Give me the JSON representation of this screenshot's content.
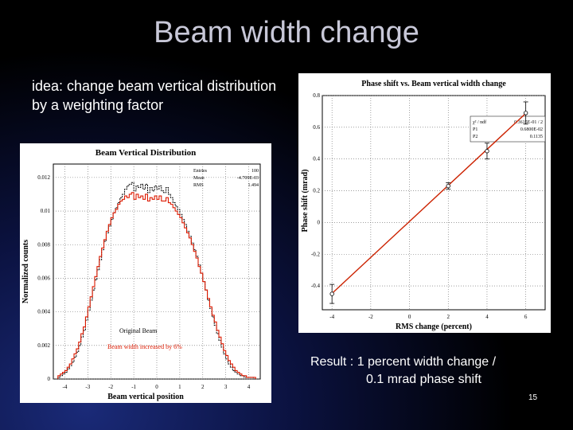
{
  "slide": {
    "title": "Beam width change",
    "idea_text": "idea: change beam vertical distribution by a weighting factor",
    "result_line1": "Result : 1 percent width change /",
    "result_line2": "0.1 mrad phase shift",
    "slide_number": "15"
  },
  "colors": {
    "fit_line": "#cc2200",
    "data": "#000000",
    "red_hist": "#dd1a00"
  },
  "chart_data": [
    {
      "type": "line",
      "title": "Beam Vertical Distribution",
      "xlabel": "Beam vertical position",
      "ylabel": "Normalized counts",
      "xlim": [
        -4.5,
        4.5
      ],
      "ylim": [
        0,
        0.0128
      ],
      "x_ticks": [
        "-4",
        "-3",
        "-2",
        "-1",
        "0",
        "1",
        "2",
        "3",
        "4"
      ],
      "y_ticks": [
        "0",
        "0.002",
        "0.004",
        "0.006",
        "0.008",
        "0.01",
        "0.012"
      ],
      "grid": true,
      "stats": [
        {
          "label": "Entries",
          "value": "100"
        },
        {
          "label": "Mean",
          "value": "-4.709E-03"
        },
        {
          "label": "RMS",
          "value": "1.494"
        }
      ],
      "annotations": [
        "Original Beam",
        "Beam width increased by 6%"
      ],
      "series": [
        {
          "name": "Original Beam",
          "color": "#000000",
          "x": [
            -4.25,
            -4.15,
            -4.05,
            -3.95,
            -3.85,
            -3.75,
            -3.65,
            -3.55,
            -3.45,
            -3.35,
            -3.25,
            -3.15,
            -3.05,
            -2.95,
            -2.85,
            -2.75,
            -2.65,
            -2.55,
            -2.45,
            -2.35,
            -2.25,
            -2.15,
            -2.05,
            -1.95,
            -1.85,
            -1.75,
            -1.65,
            -1.55,
            -1.45,
            -1.35,
            -1.25,
            -1.15,
            -1.05,
            -0.95,
            -0.85,
            -0.75,
            -0.65,
            -0.55,
            -0.45,
            -0.35,
            -0.25,
            -0.15,
            -0.05,
            0.05,
            0.15,
            0.25,
            0.35,
            0.45,
            0.55,
            0.65,
            0.75,
            0.85,
            0.95,
            1.05,
            1.15,
            1.25,
            1.35,
            1.45,
            1.55,
            1.65,
            1.75,
            1.85,
            1.95,
            2.05,
            2.15,
            2.25,
            2.35,
            2.45,
            2.55,
            2.65,
            2.75,
            2.85,
            2.95,
            3.05,
            3.15,
            3.25,
            3.35,
            3.45,
            3.55,
            3.65,
            3.75,
            3.85,
            3.95,
            4.05,
            4.15,
            4.25
          ],
          "y": [
            0.0001,
            0.0002,
            0.0003,
            0.0004,
            0.0006,
            0.0008,
            0.001,
            0.0013,
            0.0016,
            0.002,
            0.0025,
            0.0029,
            0.0035,
            0.0041,
            0.0047,
            0.0053,
            0.0059,
            0.0065,
            0.0071,
            0.0077,
            0.0082,
            0.0087,
            0.0091,
            0.0095,
            0.0099,
            0.0102,
            0.0105,
            0.0108,
            0.011,
            0.0113,
            0.0115,
            0.0116,
            0.0117,
            0.0112,
            0.0115,
            0.0114,
            0.0116,
            0.0113,
            0.0116,
            0.0111,
            0.0114,
            0.0112,
            0.0115,
            0.0113,
            0.0115,
            0.0112,
            0.0111,
            0.0114,
            0.011,
            0.0108,
            0.0105,
            0.0103,
            0.0101,
            0.0098,
            0.0095,
            0.0092,
            0.0088,
            0.0085,
            0.0081,
            0.0077,
            0.0073,
            0.0068,
            0.0063,
            0.0058,
            0.0053,
            0.0047,
            0.0042,
            0.0037,
            0.0032,
            0.0027,
            0.0023,
            0.0019,
            0.0015,
            0.0012,
            0.0009,
            0.0007,
            0.0005,
            0.0004,
            0.0003,
            0.0002,
            0.0002,
            0.0001,
            0.0001,
            0.0001,
            0.0001,
            0.0
          ]
        },
        {
          "name": "Beam width increased by 6%",
          "color": "#dd1a00",
          "x": [
            -4.25,
            -4.15,
            -4.05,
            -3.95,
            -3.85,
            -3.75,
            -3.65,
            -3.55,
            -3.45,
            -3.35,
            -3.25,
            -3.15,
            -3.05,
            -2.95,
            -2.85,
            -2.75,
            -2.65,
            -2.55,
            -2.45,
            -2.35,
            -2.25,
            -2.15,
            -2.05,
            -1.95,
            -1.85,
            -1.75,
            -1.65,
            -1.55,
            -1.45,
            -1.35,
            -1.25,
            -1.15,
            -1.05,
            -0.95,
            -0.85,
            -0.75,
            -0.65,
            -0.55,
            -0.45,
            -0.35,
            -0.25,
            -0.15,
            -0.05,
            0.05,
            0.15,
            0.25,
            0.35,
            0.45,
            0.55,
            0.65,
            0.75,
            0.85,
            0.95,
            1.05,
            1.15,
            1.25,
            1.35,
            1.45,
            1.55,
            1.65,
            1.75,
            1.85,
            1.95,
            2.05,
            2.15,
            2.25,
            2.35,
            2.45,
            2.55,
            2.65,
            2.75,
            2.85,
            2.95,
            3.05,
            3.15,
            3.25,
            3.35,
            3.45,
            3.55,
            3.65,
            3.75,
            3.85,
            3.95,
            4.05,
            4.15,
            4.25
          ],
          "y": [
            0.0002,
            0.0003,
            0.0004,
            0.0005,
            0.0007,
            0.0009,
            0.0012,
            0.0015,
            0.0018,
            0.0022,
            0.0027,
            0.0031,
            0.0037,
            0.0043,
            0.0049,
            0.0055,
            0.0061,
            0.0067,
            0.0073,
            0.0078,
            0.0083,
            0.0088,
            0.0092,
            0.0096,
            0.0099,
            0.0101,
            0.0104,
            0.0106,
            0.0107,
            0.0109,
            0.0108,
            0.011,
            0.0111,
            0.0107,
            0.011,
            0.0108,
            0.0109,
            0.0107,
            0.011,
            0.0106,
            0.0108,
            0.0107,
            0.0109,
            0.0107,
            0.0109,
            0.0106,
            0.0106,
            0.0108,
            0.0105,
            0.0104,
            0.0102,
            0.01,
            0.0098,
            0.0096,
            0.0093,
            0.009,
            0.0087,
            0.0084,
            0.008,
            0.0076,
            0.0072,
            0.0067,
            0.0063,
            0.0058,
            0.0053,
            0.0048,
            0.0043,
            0.0038,
            0.0034,
            0.0029,
            0.0025,
            0.0021,
            0.0017,
            0.0014,
            0.0011,
            0.0009,
            0.0007,
            0.0005,
            0.0004,
            0.0003,
            0.0002,
            0.0002,
            0.0001,
            0.0001,
            0.0001,
            0.0001
          ]
        }
      ]
    },
    {
      "type": "scatter",
      "title": "Phase shift vs. Beam vertical width change",
      "xlabel": "RMS change (percent)",
      "ylabel": "Phase shift (mrad)",
      "xlim": [
        -4.5,
        7
      ],
      "ylim": [
        -0.55,
        0.8
      ],
      "x_ticks": [
        "-4",
        "-2",
        "0",
        "2",
        "4",
        "6"
      ],
      "y_ticks": [
        "-0.4",
        "-0.2",
        "0",
        "0.2",
        "0.4",
        "0.6",
        "0.8"
      ],
      "grid": true,
      "fit_stats": [
        {
          "label": "χ² / ndf",
          "value": "0.3615E-01 / 2"
        },
        {
          "label": "P1",
          "value": "0.6800E-02"
        },
        {
          "label": "P2",
          "value": "0.1135"
        }
      ],
      "points": [
        {
          "x": -4,
          "y": -0.45,
          "err": 0.06
        },
        {
          "x": 2,
          "y": 0.23,
          "err": 0.02
        },
        {
          "x": 4,
          "y": 0.45,
          "err": 0.05
        },
        {
          "x": 6,
          "y": 0.69,
          "err": 0.07
        }
      ],
      "fit": {
        "slope": 0.1135,
        "intercept": 0.0068
      }
    }
  ]
}
